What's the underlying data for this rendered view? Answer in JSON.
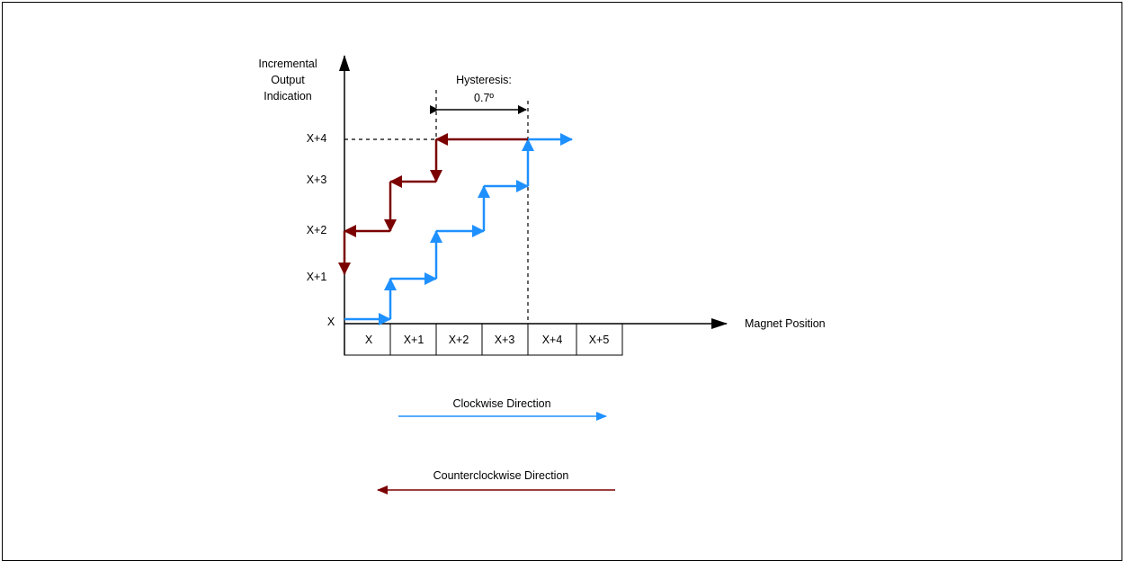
{
  "y_axis": {
    "label_lines": [
      "Incremental",
      "Output",
      "Indication"
    ],
    "ticks": [
      "X",
      "X+1",
      "X+2",
      "X+3",
      "X+4"
    ]
  },
  "x_axis": {
    "label": "Magnet Position",
    "cells": [
      "X",
      "X+1",
      "X+2",
      "X+3",
      "X+4",
      "X+5"
    ]
  },
  "hysteresis": {
    "label": "Hysteresis:",
    "value": "0.7º"
  },
  "legend": {
    "clockwise": "Clockwise Direction",
    "counterclockwise": "Counterclockwise Direction"
  },
  "colors": {
    "clockwise": "#1e90ff",
    "counterclockwise": "#7b0000",
    "axis": "#000000"
  }
}
